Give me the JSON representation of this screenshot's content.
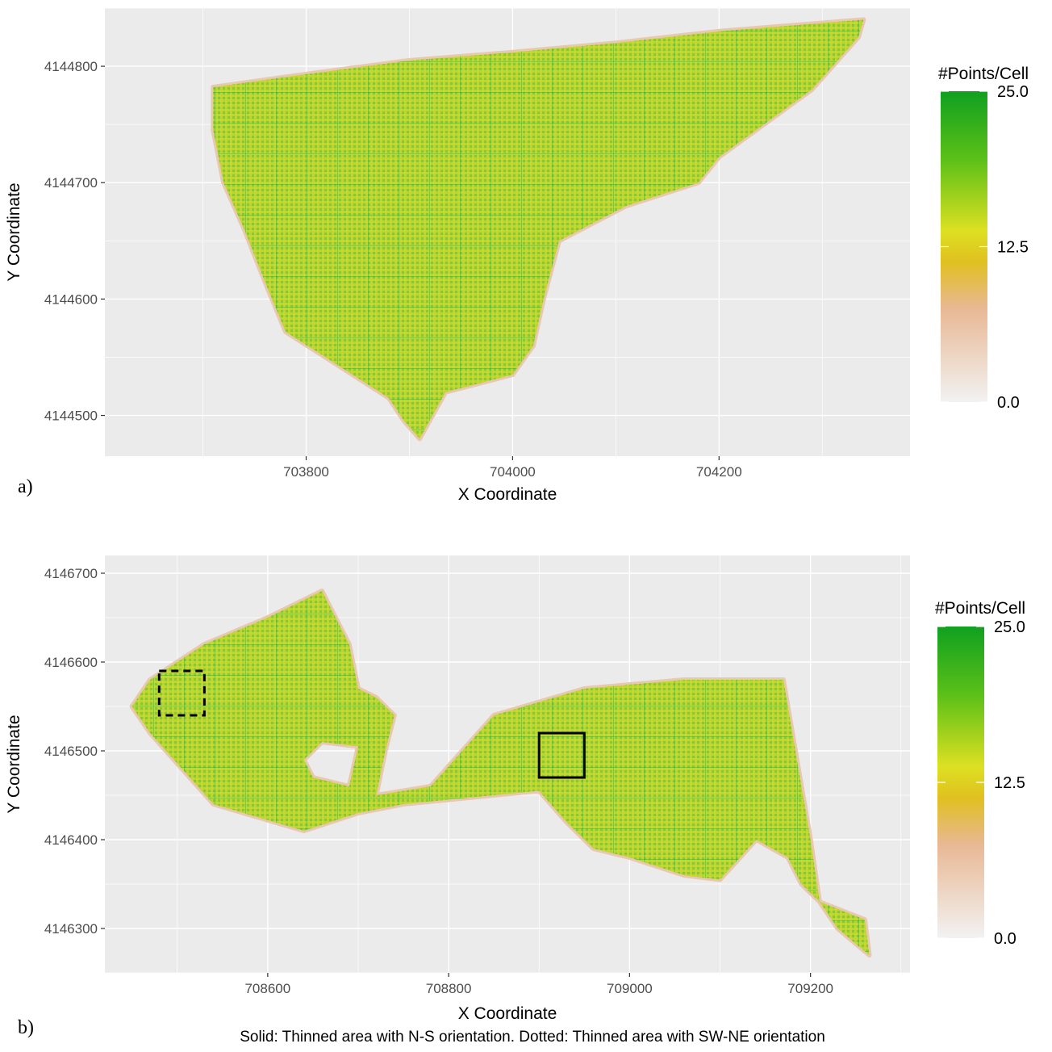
{
  "chart_data": [
    {
      "type": "heatmap",
      "panel_label": "a)",
      "xlabel": "X Coordinate",
      "ylabel": "Y Coordinate",
      "x_ticks": [
        703800,
        704000,
        704200
      ],
      "y_ticks": [
        4144500,
        4144600,
        4144700,
        4144800
      ],
      "xlim": [
        703605,
        704385
      ],
      "ylim": [
        4144465,
        4144850
      ],
      "legend": {
        "title": "#Points/Cell",
        "ticks": [
          "25.0",
          "12.5",
          "0.0"
        ],
        "range": [
          0,
          25
        ],
        "colors": [
          "#f2f2f2",
          "#e8b894",
          "#e0c020",
          "#dde022",
          "#5cc018",
          "#10a020"
        ]
      },
      "outline": [
        [
          703710,
          4144782
        ],
        [
          703790,
          4144792
        ],
        [
          703900,
          4144805
        ],
        [
          704000,
          4144812
        ],
        [
          704100,
          4144820
        ],
        [
          704200,
          4144830
        ],
        [
          704340,
          4144840
        ],
        [
          704335,
          4144825
        ],
        [
          704290,
          4144780
        ],
        [
          704200,
          4144722
        ],
        [
          704180,
          4144700
        ],
        [
          704110,
          4144680
        ],
        [
          704045,
          4144650
        ],
        [
          704030,
          4144600
        ],
        [
          704020,
          4144560
        ],
        [
          704000,
          4144535
        ],
        [
          703935,
          4144520
        ],
        [
          703910,
          4144480
        ],
        [
          703895,
          4144495
        ],
        [
          703880,
          4144515
        ],
        [
          703780,
          4144572
        ],
        [
          703760,
          4144615
        ],
        [
          703740,
          4144660
        ],
        [
          703720,
          4144700
        ],
        [
          703710,
          4144745
        ]
      ],
      "rectangles": []
    },
    {
      "type": "heatmap",
      "panel_label": "b)",
      "xlabel": "X Coordinate",
      "ylabel": "Y Coordinate",
      "x_ticks": [
        708600,
        708800,
        709000,
        709200
      ],
      "y_ticks": [
        4146300,
        4146400,
        4146500,
        4146600,
        4146700
      ],
      "xlim": [
        708420,
        709310
      ],
      "ylim": [
        4146250,
        4146720
      ],
      "legend": {
        "title": "#Points/Cell",
        "ticks": [
          "25.0",
          "12.5",
          "0.0"
        ],
        "range": [
          0,
          25
        ],
        "colors": [
          "#f2f2f2",
          "#e8b894",
          "#e0c020",
          "#dde022",
          "#5cc018",
          "#10a020"
        ]
      },
      "outline": [
        [
          708450,
          4146550
        ],
        [
          708470,
          4146580
        ],
        [
          708530,
          4146620
        ],
        [
          708600,
          4146650
        ],
        [
          708660,
          4146680
        ],
        [
          708690,
          4146620
        ],
        [
          708700,
          4146570
        ],
        [
          708720,
          4146560
        ],
        [
          708740,
          4146540
        ],
        [
          708730,
          4146500
        ],
        [
          708720,
          4146450
        ],
        [
          708780,
          4146460
        ],
        [
          708850,
          4146540
        ],
        [
          708950,
          4146570
        ],
        [
          709060,
          4146580
        ],
        [
          709170,
          4146580
        ],
        [
          709180,
          4146520
        ],
        [
          709200,
          4146400
        ],
        [
          709210,
          4146330
        ],
        [
          709260,
          4146310
        ],
        [
          709265,
          4146270
        ],
        [
          709230,
          4146300
        ],
        [
          709210,
          4146330
        ],
        [
          709190,
          4146350
        ],
        [
          709175,
          4146380
        ],
        [
          709140,
          4146400
        ],
        [
          709100,
          4146355
        ],
        [
          709060,
          4146360
        ],
        [
          709000,
          4146380
        ],
        [
          708960,
          4146390
        ],
        [
          708930,
          4146420
        ],
        [
          708900,
          4146455
        ],
        [
          708750,
          4146440
        ],
        [
          708700,
          4146430
        ],
        [
          708640,
          4146410
        ],
        [
          708540,
          4146440
        ],
        [
          708470,
          4146520
        ]
      ],
      "holes": [
        [
          [
            708660,
            4146510
          ],
          [
            708700,
            4146505
          ],
          [
            708690,
            4146460
          ],
          [
            708650,
            4146470
          ],
          [
            708640,
            4146490
          ]
        ]
      ],
      "rectangles": [
        {
          "style": "solid",
          "x": [
            708900,
            708950
          ],
          "y": [
            4146470,
            4146520
          ]
        },
        {
          "style": "dotted",
          "x": [
            708480,
            708530
          ],
          "y": [
            4146540,
            4146590
          ]
        }
      ]
    }
  ],
  "caption": "Solid: Thinned area with N-S orientation. Dotted: Thinned area with SW-NE orientation"
}
